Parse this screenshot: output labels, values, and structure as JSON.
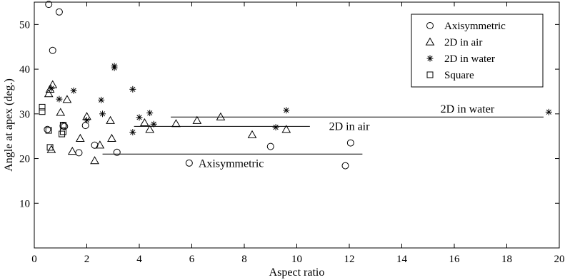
{
  "chart_data": {
    "type": "scatter",
    "xlabel": "Aspect ratio",
    "ylabel": "Angle at apex (deg.)",
    "xlim": [
      0,
      20
    ],
    "ylim": [
      0,
      55
    ],
    "xticks": [
      0,
      2,
      4,
      6,
      8,
      10,
      12,
      14,
      16,
      18,
      20
    ],
    "yticks": [
      10,
      20,
      30,
      40,
      50
    ],
    "grid": false,
    "legend_position": "top-right",
    "series": [
      {
        "name": "Axisymmetric",
        "marker": "circle",
        "points": [
          [
            0.55,
            54.5
          ],
          [
            0.95,
            52.8
          ],
          [
            0.7,
            44.2
          ],
          [
            0.5,
            26.5
          ],
          [
            1.1,
            27.3
          ],
          [
            1.15,
            27.2
          ],
          [
            1.95,
            27.4
          ],
          [
            1.7,
            21.3
          ],
          [
            2.3,
            23.0
          ],
          [
            3.15,
            21.4
          ],
          [
            5.9,
            19.0
          ],
          [
            9.0,
            22.7
          ],
          [
            11.85,
            18.4
          ],
          [
            12.05,
            23.5
          ]
        ]
      },
      {
        "name": "2D in air",
        "marker": "triangle",
        "points": [
          [
            0.55,
            34.5
          ],
          [
            0.6,
            35.5
          ],
          [
            0.7,
            36.5
          ],
          [
            1.25,
            33.2
          ],
          [
            1.0,
            30.3
          ],
          [
            2.0,
            29.4
          ],
          [
            2.9,
            28.5
          ],
          [
            2.95,
            24.5
          ],
          [
            1.75,
            24.5
          ],
          [
            1.45,
            21.6
          ],
          [
            0.65,
            22.0
          ],
          [
            2.3,
            19.5
          ],
          [
            2.5,
            23.0
          ],
          [
            4.2,
            28.0
          ],
          [
            4.4,
            26.5
          ],
          [
            5.4,
            27.8
          ],
          [
            6.2,
            28.5
          ],
          [
            7.1,
            29.3
          ],
          [
            8.3,
            25.3
          ],
          [
            9.6,
            26.5
          ]
        ]
      },
      {
        "name": "2D in water",
        "marker": "star",
        "points": [
          [
            0.65,
            35.7
          ],
          [
            0.95,
            33.3
          ],
          [
            1.5,
            35.2
          ],
          [
            2.0,
            28.6
          ],
          [
            2.55,
            33.1
          ],
          [
            2.6,
            30.0
          ],
          [
            3.05,
            40.3
          ],
          [
            3.05,
            40.7
          ],
          [
            3.75,
            35.5
          ],
          [
            3.75,
            25.9
          ],
          [
            4.0,
            29.2
          ],
          [
            4.4,
            30.2
          ],
          [
            4.55,
            27.7
          ],
          [
            9.2,
            27.0
          ],
          [
            9.6,
            30.8
          ],
          [
            19.6,
            30.4
          ]
        ]
      },
      {
        "name": "Square",
        "marker": "square",
        "points": [
          [
            0.3,
            31.5
          ],
          [
            0.3,
            30.5
          ],
          [
            0.55,
            26.3
          ],
          [
            0.6,
            22.5
          ],
          [
            1.05,
            25.5
          ],
          [
            1.1,
            26.0
          ],
          [
            1.1,
            27.5
          ]
        ]
      }
    ],
    "fit_lines": [
      {
        "label": "2D in water",
        "y": 29.3,
        "x": [
          5.2,
          19.4
        ]
      },
      {
        "label": "2D in air",
        "y": 27.2,
        "x": [
          3.8,
          10.5
        ]
      },
      {
        "label": "Axisymmetric",
        "y": 21.0,
        "x": [
          2.6,
          12.5
        ]
      }
    ]
  }
}
